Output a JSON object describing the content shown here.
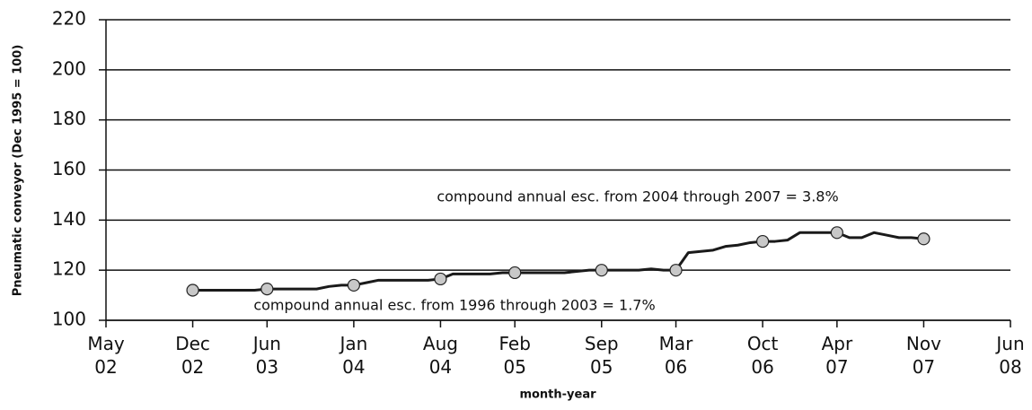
{
  "chart_data": {
    "type": "line",
    "y_label": "Pneumatic conveyor (Dec 1995 = 100)",
    "x_label": "month-year",
    "annotations": [
      "compound annual esc. from 2004 through 2007 = 3.8%",
      "compound annual esc. from 1996 through 2003 = 1.7%"
    ],
    "xlim": [
      "2002-05",
      "2008-06"
    ],
    "xticks": [
      {
        "value": "2002-05",
        "label": "May\n02"
      },
      {
        "value": "2002-12",
        "label": "Dec\n02"
      },
      {
        "value": "2003-06",
        "label": "Jun\n03"
      },
      {
        "value": "2004-01",
        "label": "Jan\n04"
      },
      {
        "value": "2004-08",
        "label": "Aug\n04"
      },
      {
        "value": "2005-02",
        "label": "Feb\n05"
      },
      {
        "value": "2005-09",
        "label": "Sep\n05"
      },
      {
        "value": "2006-03",
        "label": "Mar\n06"
      },
      {
        "value": "2006-10",
        "label": "Oct\n06"
      },
      {
        "value": "2007-04",
        "label": "Apr\n07"
      },
      {
        "value": "2007-11",
        "label": "Nov\n07"
      },
      {
        "value": "2008-06",
        "label": "Jun\n08"
      }
    ],
    "ylim": [
      100,
      220
    ],
    "yticks": [
      100,
      120,
      140,
      160,
      180,
      200,
      220
    ],
    "grid": true,
    "series": [
      {
        "color": "#1a1a1a",
        "x": [
          "2002-12",
          "2003-01",
          "2003-02",
          "2003-03",
          "2003-04",
          "2003-05",
          "2003-06",
          "2003-07",
          "2003-08",
          "2003-09",
          "2003-10",
          "2003-11",
          "2003-12",
          "2004-01",
          "2004-02",
          "2004-03",
          "2004-04",
          "2004-05",
          "2004-06",
          "2004-07",
          "2004-08",
          "2004-09",
          "2004-10",
          "2004-11",
          "2004-12",
          "2005-01",
          "2005-02",
          "2005-03",
          "2005-04",
          "2005-05",
          "2005-06",
          "2005-07",
          "2005-08",
          "2005-09",
          "2005-10",
          "2005-11",
          "2005-12",
          "2006-01",
          "2006-02",
          "2006-03",
          "2006-04",
          "2006-05",
          "2006-06",
          "2006-07",
          "2006-08",
          "2006-09",
          "2006-10",
          "2006-11",
          "2006-12",
          "2007-01",
          "2007-02",
          "2007-03",
          "2007-04",
          "2007-05",
          "2007-06",
          "2007-07",
          "2007-08",
          "2007-09",
          "2007-10",
          "2007-11"
        ],
        "values": [
          112,
          112,
          112,
          112,
          112,
          112,
          112.5,
          112.5,
          112.5,
          112.5,
          112.5,
          113.5,
          114,
          114,
          115,
          116,
          116,
          116,
          116,
          116,
          116.5,
          118.5,
          118.5,
          118.5,
          118.5,
          119,
          119,
          119,
          119,
          119,
          119,
          119.5,
          120,
          120,
          120,
          120,
          120,
          120.5,
          120,
          120,
          127,
          127.5,
          128,
          129.5,
          130,
          131,
          131.5,
          131.5,
          132,
          135,
          135,
          135,
          135,
          133,
          133,
          135,
          134,
          133,
          133,
          132.5
        ]
      },
      {
        "color": "#c8c8c8",
        "x": [
          "2002-12",
          "2003-06",
          "2004-01",
          "2004-08",
          "2005-02",
          "2005-09",
          "2006-03",
          "2006-10",
          "2007-04",
          "2007-11"
        ],
        "values": [
          112,
          112.5,
          114,
          116.5,
          119,
          120,
          120,
          131.5,
          135,
          132.5
        ]
      }
    ]
  }
}
